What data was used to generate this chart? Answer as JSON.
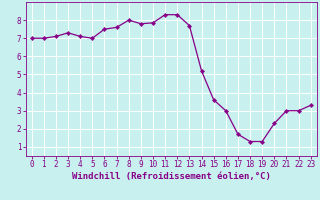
{
  "x": [
    0,
    1,
    2,
    3,
    4,
    5,
    6,
    7,
    8,
    9,
    10,
    11,
    12,
    13,
    14,
    15,
    16,
    17,
    18,
    19,
    20,
    21,
    22,
    23
  ],
  "y": [
    7.0,
    7.0,
    7.1,
    7.3,
    7.1,
    7.0,
    7.5,
    7.6,
    8.0,
    7.8,
    7.85,
    8.3,
    8.3,
    7.7,
    5.2,
    3.6,
    3.0,
    1.7,
    1.3,
    1.3,
    2.3,
    3.0,
    3.0,
    3.3
  ],
  "line_color": "#880088",
  "marker": "D",
  "marker_size": 2.2,
  "line_width": 1.0,
  "background_color": "#c8f0ee",
  "grid_color": "#ffffff",
  "xlabel": "Windchill (Refroidissement éolien,°C)",
  "ylabel": "",
  "xlim": [
    -0.5,
    23.5
  ],
  "ylim": [
    0.5,
    9.0
  ],
  "xticks": [
    0,
    1,
    2,
    3,
    4,
    5,
    6,
    7,
    8,
    9,
    10,
    11,
    12,
    13,
    14,
    15,
    16,
    17,
    18,
    19,
    20,
    21,
    22,
    23
  ],
  "yticks": [
    1,
    2,
    3,
    4,
    5,
    6,
    7,
    8
  ],
  "tick_fontsize": 5.5,
  "xlabel_fontsize": 6.5,
  "grid_linewidth": 0.7,
  "line_linewidth": 0.9,
  "spine_color": "#880088",
  "tick_color": "#880088"
}
